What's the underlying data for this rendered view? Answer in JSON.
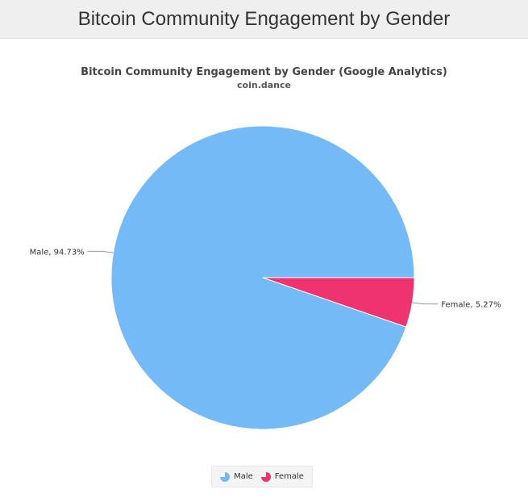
{
  "header": {
    "title": "Bitcoin Community Engagement by Gender"
  },
  "chart_data": {
    "type": "pie",
    "title": "Bitcoin Community Engagement by Gender (Google Analytics)",
    "subtitle": "coin.dance",
    "slices": [
      {
        "name": "Male",
        "value": 94.73,
        "label": "Male, 94.73%",
        "color": "#74baf7"
      },
      {
        "name": "Female",
        "value": 5.27,
        "label": "Female, 5.27%",
        "color": "#ee3370"
      }
    ],
    "legend": {
      "placement": "bottom-center"
    }
  }
}
